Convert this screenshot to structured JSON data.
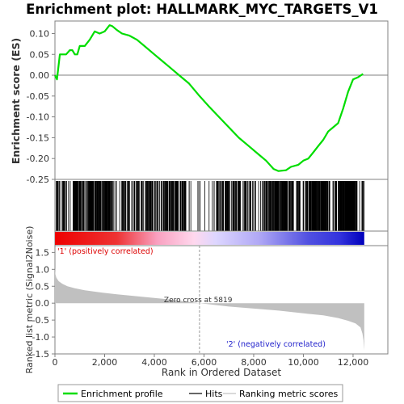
{
  "chart_data": {
    "type": "line",
    "title": "Enrichment plot: HALLMARK_MYC_TARGETS_V1",
    "es_panel": {
      "ylabel": "Enrichment score (ES)",
      "ylim": [
        -0.25,
        0.13
      ],
      "yticks": [
        "0.10",
        "0.05",
        "0.00",
        "-0.05",
        "-0.10",
        "-0.15",
        "-0.20",
        "-0.25"
      ],
      "ytick_values": [
        0.1,
        0.05,
        0.0,
        -0.05,
        -0.1,
        -0.15,
        -0.2,
        -0.25
      ],
      "series": {
        "name": "Enrichment profile",
        "color": "#00dd00",
        "x": [
          0,
          80,
          200,
          300,
          450,
          600,
          700,
          800,
          900,
          1000,
          1200,
          1400,
          1600,
          1800,
          2000,
          2200,
          2300,
          2500,
          2700,
          3000,
          3300,
          3600,
          4000,
          4300,
          4600,
          5000,
          5400,
          5819,
          6200,
          6600,
          7000,
          7400,
          7800,
          8200,
          8500,
          8800,
          9000,
          9300,
          9500,
          9800,
          10000,
          10200,
          10400,
          10600,
          10800,
          11000,
          11200,
          11400,
          11600,
          11800,
          12000,
          12200,
          12400
        ],
        "y": [
          0.0,
          -0.01,
          0.05,
          0.05,
          0.05,
          0.06,
          0.06,
          0.05,
          0.05,
          0.07,
          0.07,
          0.085,
          0.105,
          0.1,
          0.105,
          0.12,
          0.118,
          0.108,
          0.1,
          0.095,
          0.085,
          0.07,
          0.05,
          0.035,
          0.02,
          0.0,
          -0.02,
          -0.05,
          -0.075,
          -0.1,
          -0.125,
          -0.15,
          -0.17,
          -0.19,
          -0.205,
          -0.225,
          -0.23,
          -0.228,
          -0.22,
          -0.215,
          -0.205,
          -0.2,
          -0.185,
          -0.17,
          -0.155,
          -0.135,
          -0.125,
          -0.115,
          -0.08,
          -0.04,
          -0.01,
          -0.005,
          0.003
        ]
      }
    },
    "hits_panel": {
      "label": "Hits",
      "density_segments": [
        [
          0,
          700,
          3
        ],
        [
          700,
          1400,
          7
        ],
        [
          1400,
          2300,
          9
        ],
        [
          2300,
          3300,
          3
        ],
        [
          3300,
          4400,
          4
        ],
        [
          4400,
          5300,
          7
        ],
        [
          5300,
          6500,
          1
        ],
        [
          6500,
          7300,
          6
        ],
        [
          7300,
          8400,
          3
        ],
        [
          8400,
          9600,
          9
        ],
        [
          9600,
          10300,
          4
        ],
        [
          10300,
          11000,
          11
        ],
        [
          11000,
          11400,
          3
        ],
        [
          11400,
          12100,
          14
        ],
        [
          12100,
          12450,
          3
        ]
      ]
    },
    "ranking_bar": {
      "gradient_stops": [
        {
          "pos": 0.0,
          "color": "#ee0000"
        },
        {
          "pos": 0.2,
          "color": "#ee3333"
        },
        {
          "pos": 0.33,
          "color": "#f9a0c0"
        },
        {
          "pos": 0.45,
          "color": "#ffd8ee"
        },
        {
          "pos": 0.52,
          "color": "#ddd6ff"
        },
        {
          "pos": 0.66,
          "color": "#b0a8f5"
        },
        {
          "pos": 0.82,
          "color": "#5050e0"
        },
        {
          "pos": 0.92,
          "color": "#3333dd"
        },
        {
          "pos": 1.0,
          "color": "#0000bb"
        }
      ]
    },
    "metric_panel": {
      "ylabel": "Ranked list metric (Signal2Noise)",
      "xlabel": "Rank in Ordered Dataset",
      "ylim": [
        -1.5,
        1.7
      ],
      "yticks": [
        "1.5",
        "1.0",
        "0.5",
        "0.0",
        "-0.5",
        "-1.0",
        "-1.5"
      ],
      "ytick_values": [
        1.5,
        1.0,
        0.5,
        0.0,
        -0.5,
        -1.0,
        -1.5
      ],
      "xlim": [
        0,
        13400
      ],
      "xticks": [
        "0",
        "2,000",
        "4,000",
        "6,000",
        "8,000",
        "10,000",
        "12,000"
      ],
      "xtick_values": [
        0,
        2000,
        4000,
        6000,
        8000,
        10000,
        12000
      ],
      "fill_color": "#c0c0c0",
      "x": [
        0,
        20,
        60,
        150,
        300,
        500,
        800,
        1200,
        1800,
        2500,
        3500,
        4500,
        5819,
        7000,
        8000,
        9000,
        10000,
        10800,
        11400,
        11800,
        12100,
        12300,
        12380,
        12420,
        12450
      ],
      "y": [
        1.05,
        0.85,
        0.75,
        0.65,
        0.57,
        0.5,
        0.44,
        0.38,
        0.32,
        0.26,
        0.19,
        0.12,
        0.0,
        -0.1,
        -0.16,
        -0.22,
        -0.3,
        -0.36,
        -0.44,
        -0.52,
        -0.6,
        -0.72,
        -0.9,
        -1.1,
        -1.4
      ],
      "zero_cross_label": "Zero cross at 5819",
      "zero_cross_value": 5819,
      "pos_label": "'1' (positively correlated)",
      "neg_label": "'2' (negatively correlated)",
      "pos_color": "#dd0000",
      "neg_color": "#2222cc"
    },
    "legend": [
      {
        "label": "Enrichment profile",
        "color": "#00dd00"
      },
      {
        "label": "Hits",
        "color": "#000000"
      },
      {
        "label": "Ranking metric scores",
        "color": "#c0c0c0"
      }
    ]
  }
}
